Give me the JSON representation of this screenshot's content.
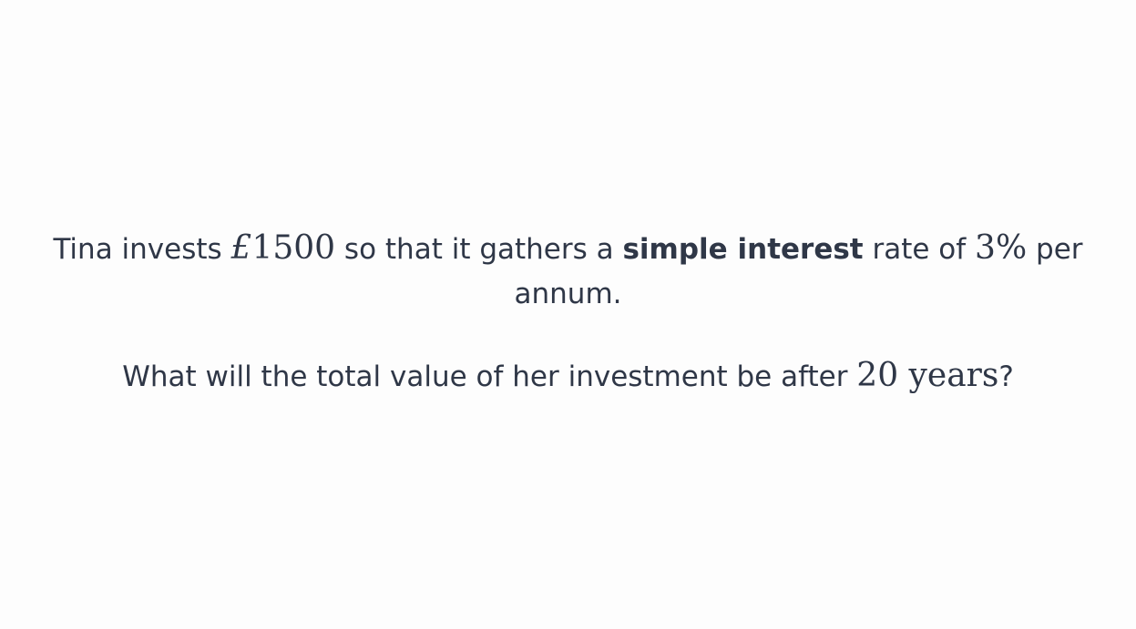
{
  "question": {
    "p1_a": "Tina invests ",
    "p1_currency": "£",
    "p1_amount": "1500",
    "p1_b": " so that it gathers a ",
    "p1_bold": "simple interest",
    "p1_c": " rate of ",
    "p1_rate": "3%",
    "p1_d": " per annum.",
    "p2_a": "What will the total value of her investment be after ",
    "p2_years_num": "20",
    "p2_years_unit": " years",
    "p2_end": "?"
  }
}
